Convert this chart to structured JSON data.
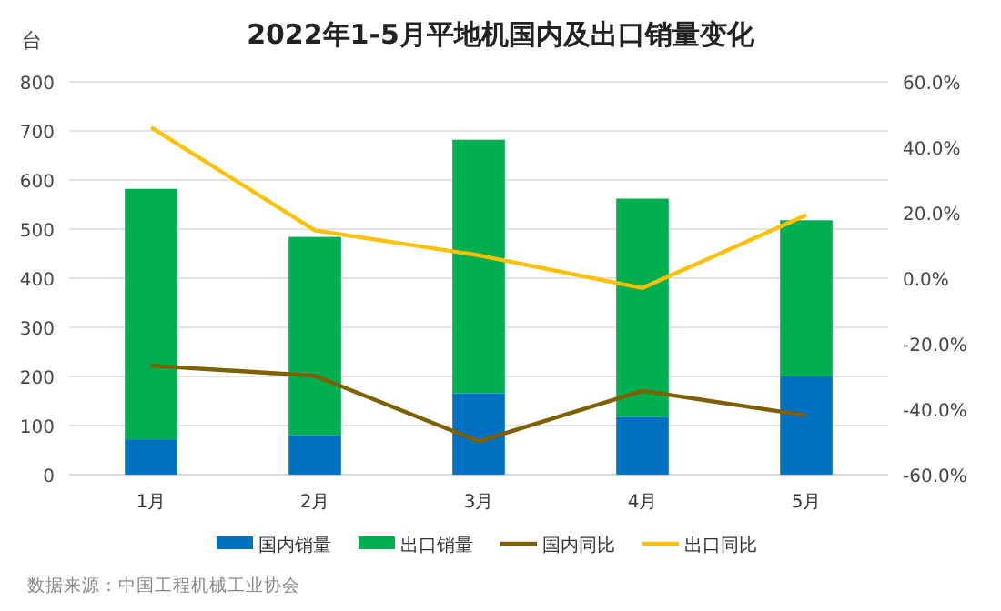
{
  "chart_data": {
    "type": "bar",
    "title": "2022年1-5月平地机国内及出口销量变化",
    "ylabel": "台",
    "stacked": true,
    "categories": [
      "1月",
      "2月",
      "3月",
      "4月",
      "5月"
    ],
    "series": [
      {
        "name": "国内销量",
        "color": "#0070c0",
        "values": [
          72,
          81,
          166,
          118,
          200
        ]
      },
      {
        "name": "出口销量",
        "color": "#00b050",
        "values": [
          510,
          403,
          516,
          444,
          318
        ]
      },
      {
        "name": "国内同比",
        "type": "line",
        "axis": "y2",
        "color": "#7f6000",
        "values": [
          -26.7,
          -29.8,
          -49.8,
          -34.4,
          -41.9
        ]
      },
      {
        "name": "出口同比",
        "type": "line",
        "axis": "y2",
        "color": "#ffc000",
        "values": [
          46.1,
          14.6,
          7.0,
          -3.0,
          19.3
        ]
      }
    ],
    "ylim": [
      0,
      800
    ],
    "yticks": [
      0,
      100,
      200,
      300,
      400,
      500,
      600,
      700,
      800
    ],
    "y2lim": [
      -60,
      60
    ],
    "y2ticks": [
      {
        "value": -60,
        "label": "-60.0%"
      },
      {
        "value": -40,
        "label": "-40.0%"
      },
      {
        "value": -20,
        "label": "-20.0%"
      },
      {
        "value": 0,
        "label": "0.0%"
      },
      {
        "value": 20,
        "label": "20.0%"
      },
      {
        "value": 40,
        "label": "40.0%"
      },
      {
        "value": 60,
        "label": "60.0%"
      }
    ],
    "grid": "y",
    "legend": "bottom",
    "marker": "none",
    "line_style": "solid",
    "annotations": [
      "数据来源：中国工程机械工业协会"
    ]
  }
}
